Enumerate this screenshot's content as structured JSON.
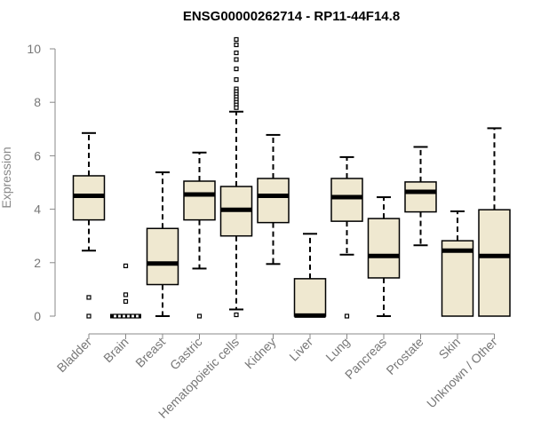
{
  "chart_data": {
    "type": "box",
    "title": "ENSG00000262714 - RP11-44F14.8",
    "xlabel": "",
    "ylabel": "Expression",
    "ylim": [
      0,
      10.4
    ],
    "yticks": [
      0,
      2,
      4,
      6,
      8,
      10
    ],
    "categories": [
      "Bladder",
      "Brain",
      "Breast",
      "Gastric",
      "Hematopoietic cells",
      "Kidney",
      "Liver",
      "Lung",
      "Pancreas",
      "Prostate",
      "Skin",
      "Unknown / Other"
    ],
    "box_fill": "#efe8d0",
    "box_stroke": "#000000",
    "boxes": [
      {
        "name": "Bladder",
        "whisker_low": 2.45,
        "q1": 3.6,
        "median": 4.5,
        "q3": 5.25,
        "whisker_high": 6.85,
        "outliers": [
          0.7,
          0.0
        ]
      },
      {
        "name": "Brain",
        "whisker_low": 0,
        "q1": 0,
        "median": 0,
        "q3": 0,
        "whisker_high": 0,
        "outliers": [
          1.88,
          0.8,
          0.55,
          0.0,
          0.0,
          0.0,
          0.0,
          0.0,
          0.0
        ]
      },
      {
        "name": "Breast",
        "whisker_low": 0.0,
        "q1": 1.18,
        "median": 1.97,
        "q3": 3.28,
        "whisker_high": 5.38,
        "outliers": []
      },
      {
        "name": "Gastric",
        "whisker_low": 1.78,
        "q1": 3.6,
        "median": 4.55,
        "q3": 5.05,
        "whisker_high": 6.12,
        "outliers": [
          0.0
        ]
      },
      {
        "name": "Hematopoietic cells",
        "whisker_low": 0.25,
        "q1": 3.0,
        "median": 3.98,
        "q3": 4.85,
        "whisker_high": 7.65,
        "outliers": [
          10.35,
          10.15,
          9.85,
          9.6,
          9.25,
          8.85,
          8.5,
          8.4,
          8.3,
          8.2,
          8.1,
          8.0,
          7.9,
          7.8,
          0.05
        ]
      },
      {
        "name": "Kidney",
        "whisker_low": 1.95,
        "q1": 3.5,
        "median": 4.5,
        "q3": 5.15,
        "whisker_high": 6.78,
        "outliers": []
      },
      {
        "name": "Liver",
        "whisker_low": 0,
        "q1": 0,
        "median": 0.02,
        "q3": 1.4,
        "whisker_high": 3.08,
        "outliers": []
      },
      {
        "name": "Lung",
        "whisker_low": 2.3,
        "q1": 3.55,
        "median": 4.45,
        "q3": 5.15,
        "whisker_high": 5.95,
        "outliers": [
          0.0
        ]
      },
      {
        "name": "Pancreas",
        "whisker_low": 0.0,
        "q1": 1.43,
        "median": 2.25,
        "q3": 3.65,
        "whisker_high": 4.45,
        "outliers": []
      },
      {
        "name": "Prostate",
        "whisker_low": 2.65,
        "q1": 3.9,
        "median": 4.65,
        "q3": 5.02,
        "whisker_high": 6.33,
        "outliers": []
      },
      {
        "name": "Skin",
        "whisker_low": 0,
        "q1": 0,
        "median": 2.45,
        "q3": 2.82,
        "whisker_high": 3.92,
        "outliers": []
      },
      {
        "name": "Unknown / Other",
        "whisker_low": 0,
        "q1": 0,
        "median": 2.25,
        "q3": 3.98,
        "whisker_high": 7.03,
        "outliers": []
      }
    ]
  }
}
